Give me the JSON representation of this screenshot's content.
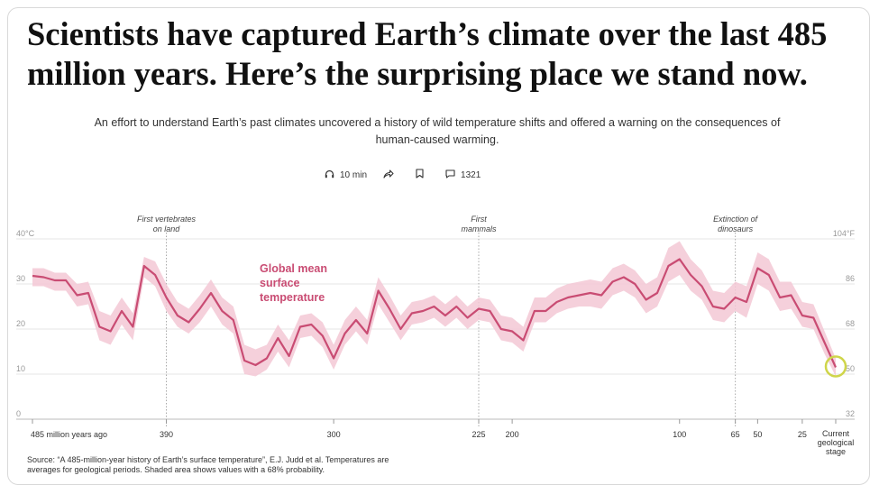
{
  "headline": "Scientists have captured Earth’s climate over the last 485 million years. Here’s the surprising place we stand now.",
  "dek": "An effort to understand Earth’s past climates uncovered a history of wild temperature shifts and offered a warning on the consequences of human-caused warming.",
  "meta": {
    "listen_icon": "headphones-icon",
    "listen_label": "10 min",
    "share_icon": "share-icon",
    "bookmark_icon": "bookmark-icon",
    "comments_icon": "comment-icon",
    "comments_count": "1321"
  },
  "source": "Source: “A 485-million-year history of Earth’s surface temperature”, E.J. Judd et al. Temperatures are averages for geological periods. Shaded area shows values with a 68% probability.",
  "chart_data": {
    "type": "area",
    "title": "",
    "xlabel": "",
    "ylabel": "",
    "series_label": [
      "Global mean",
      "surface",
      "temperature"
    ],
    "ylim": [
      0,
      40
    ],
    "yticks_left": [
      "0",
      "10",
      "20",
      "30",
      "40°C"
    ],
    "yticks_right": [
      "32",
      "50",
      "68",
      "86",
      "104°F"
    ],
    "xticks": [
      {
        "i": 0,
        "label": "485 million years ago"
      },
      {
        "i": 12,
        "label": "390"
      },
      {
        "i": 27,
        "label": "300"
      },
      {
        "i": 40,
        "label": "225"
      },
      {
        "i": 43,
        "label": "200"
      },
      {
        "i": 58,
        "label": "100"
      },
      {
        "i": 63,
        "label": "65"
      },
      {
        "i": 65,
        "label": "50"
      },
      {
        "i": 69,
        "label": "25"
      },
      {
        "i": 72,
        "label": "Current geological stage"
      }
    ],
    "events": [
      {
        "i": 12,
        "label": [
          "First vertebrates",
          "on land"
        ]
      },
      {
        "i": 40,
        "label": [
          "First",
          "mammals"
        ]
      },
      {
        "i": 63,
        "label": [
          "Extinction of",
          "dinosaurs"
        ]
      }
    ],
    "x": [
      "485",
      "478",
      "472",
      "465",
      "458",
      "452",
      "446",
      "440",
      "433",
      "427",
      "420",
      "412",
      "390",
      "382",
      "372",
      "358",
      "347",
      "339",
      "330",
      "322",
      "314",
      "306",
      "300",
      "294",
      "285",
      "279",
      "273",
      "266",
      "260",
      "254",
      "248",
      "242",
      "235",
      "229",
      "225",
      "219",
      "213",
      "207",
      "201",
      "196",
      "190",
      "184",
      "178",
      "172",
      "166",
      "160",
      "154",
      "148",
      "142",
      "136",
      "131",
      "126",
      "121",
      "116",
      "111",
      "106",
      "101",
      "96",
      "90",
      "84",
      "78",
      "72",
      "66",
      "60",
      "56",
      "52",
      "48",
      "40",
      "33",
      "28",
      "20",
      "10",
      "0"
    ],
    "values": [
      31.8,
      31.5,
      30.8,
      30.8,
      27.5,
      28,
      20.5,
      19.5,
      24,
      20.5,
      34,
      32,
      27,
      23,
      21.5,
      24.5,
      28,
      24,
      22,
      13,
      12,
      13.5,
      18,
      14,
      20.5,
      21,
      18.5,
      13.5,
      19,
      22,
      19,
      28.5,
      24.5,
      20,
      23.5,
      24,
      25,
      23,
      25,
      22.5,
      24.5,
      24,
      20,
      19.5,
      17.5,
      24,
      24,
      26,
      27,
      27.5,
      28,
      27.5,
      30.5,
      31.5,
      30,
      26.5,
      28,
      34,
      35.5,
      32,
      29.5,
      25,
      24.5,
      27,
      26,
      33.5,
      32,
      27,
      27.5,
      23,
      22.5,
      17,
      11.5
    ],
    "upper": [
      33.5,
      33.5,
      32.5,
      32.5,
      30,
      30.5,
      24,
      23,
      27,
      23.5,
      36,
      35,
      30,
      26,
      24.5,
      27.5,
      31,
      27,
      25,
      16.5,
      15.5,
      16.5,
      21,
      17.5,
      23,
      23.5,
      21.5,
      16.5,
      22,
      25,
      22,
      31.5,
      27.5,
      23,
      26,
      26.5,
      27.5,
      25.5,
      27.5,
      25,
      27,
      26.5,
      23,
      22.5,
      20.5,
      27,
      27,
      29,
      30,
      30.5,
      31,
      30.5,
      33.5,
      34.5,
      33,
      30,
      31.5,
      38,
      39.5,
      35.5,
      33,
      28.5,
      28,
      30.5,
      29.5,
      37,
      35.5,
      30.5,
      30.5,
      26,
      25.5,
      19.5,
      13.5
    ],
    "lower": [
      29.5,
      29.5,
      28.5,
      28.5,
      25,
      25.5,
      17.5,
      16.5,
      21,
      17.5,
      31.5,
      29.5,
      24,
      20.5,
      19,
      21.5,
      25,
      21,
      19,
      10,
      9.5,
      11,
      15,
      11.5,
      18,
      18.5,
      16,
      11,
      16.5,
      19.5,
      16.5,
      25.5,
      21.5,
      17.5,
      21,
      21.5,
      22.5,
      20.5,
      22.5,
      20,
      22,
      21.5,
      17.5,
      17,
      15,
      21.5,
      21.5,
      23.5,
      24.5,
      25,
      25,
      24.5,
      27.5,
      28.5,
      27,
      23.5,
      25,
      30.5,
      32,
      28.5,
      26.5,
      22,
      21.5,
      24,
      22.5,
      30,
      28.5,
      24,
      24.5,
      20.5,
      20,
      14.5,
      9.5
    ],
    "current_value_highlight": 11.5,
    "colors": {
      "line": "#c94c73",
      "band": "#f3c8d5",
      "label": "#c94c73",
      "grid": "#e6e6e6",
      "event_line": "#aaaaaa",
      "highlight_ring": "#cfd54a"
    },
    "grid": true,
    "legend": "inline, upper-left of plot"
  }
}
